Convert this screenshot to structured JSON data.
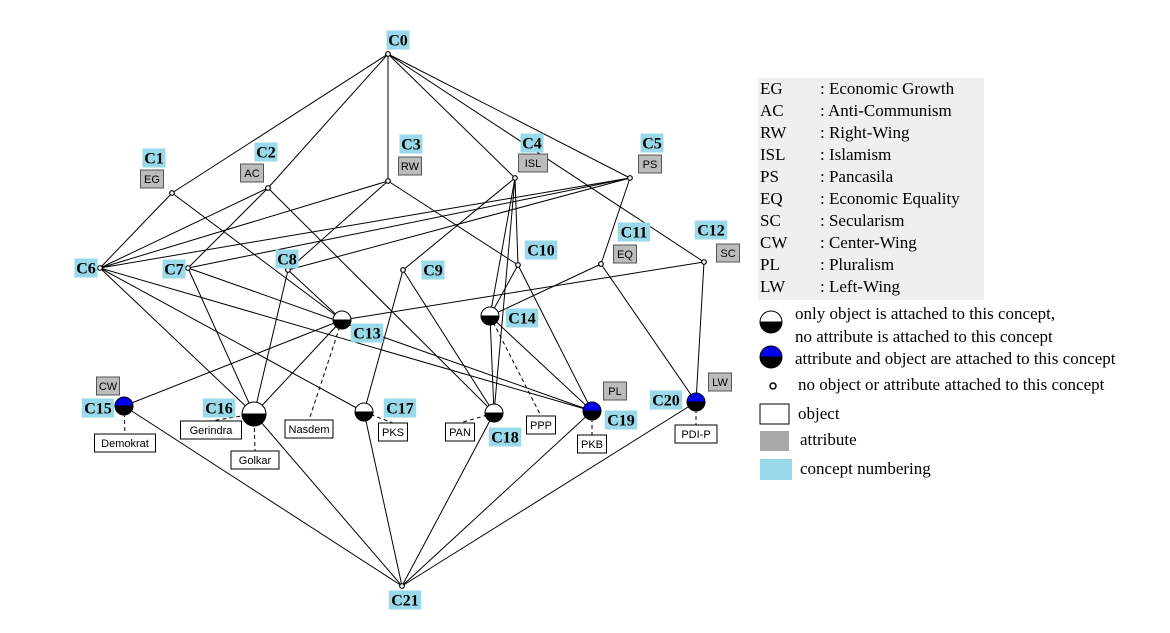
{
  "colors": {
    "concept_label_bg": "#99d9ea",
    "attribute_bg": "#bcbcbc",
    "object_bg": "#ffffff",
    "attr_obj_node": "#0000ee",
    "obj_node": "#000000",
    "legend_table_bg": "#efefef"
  },
  "concepts": [
    {
      "id": "C0"
    },
    {
      "id": "C1"
    },
    {
      "id": "C2"
    },
    {
      "id": "C3"
    },
    {
      "id": "C4"
    },
    {
      "id": "C5"
    },
    {
      "id": "C6"
    },
    {
      "id": "C7"
    },
    {
      "id": "C8"
    },
    {
      "id": "C9"
    },
    {
      "id": "C10"
    },
    {
      "id": "C11"
    },
    {
      "id": "C12"
    },
    {
      "id": "C13"
    },
    {
      "id": "C14"
    },
    {
      "id": "C15"
    },
    {
      "id": "C16"
    },
    {
      "id": "C17"
    },
    {
      "id": "C18"
    },
    {
      "id": "C19"
    },
    {
      "id": "C20"
    },
    {
      "id": "C21"
    }
  ],
  "attributes": [
    {
      "concept": "C1",
      "label": "EG"
    },
    {
      "concept": "C2",
      "label": "AC"
    },
    {
      "concept": "C3",
      "label": "RW"
    },
    {
      "concept": "C4",
      "label": "ISL"
    },
    {
      "concept": "C5",
      "label": "PS"
    },
    {
      "concept": "C11",
      "label": "EQ"
    },
    {
      "concept": "C12",
      "label": "SC"
    },
    {
      "concept": "C15",
      "label": "CW"
    },
    {
      "concept": "C19",
      "label": "PL"
    },
    {
      "concept": "C20",
      "label": "LW"
    }
  ],
  "objects": [
    {
      "concept": "C15",
      "label": "Demokrat"
    },
    {
      "concept": "C16",
      "label": "Gerindra"
    },
    {
      "concept": "C16",
      "label": "Golkar"
    },
    {
      "concept": "C13",
      "label": "Nasdem"
    },
    {
      "concept": "C17",
      "label": "PKS"
    },
    {
      "concept": "C18",
      "label": "PAN"
    },
    {
      "concept": "C14",
      "label": "PPP"
    },
    {
      "concept": "C19",
      "label": "PKB"
    },
    {
      "concept": "C20",
      "label": "PDI-P"
    }
  ],
  "edges": [
    [
      "C0",
      "C1"
    ],
    [
      "C0",
      "C2"
    ],
    [
      "C0",
      "C3"
    ],
    [
      "C0",
      "C4"
    ],
    [
      "C0",
      "C5"
    ],
    [
      "C0",
      "C12"
    ],
    [
      "C1",
      "C6"
    ],
    [
      "C1",
      "C13"
    ],
    [
      "C2",
      "C6"
    ],
    [
      "C2",
      "C7"
    ],
    [
      "C2",
      "C18"
    ],
    [
      "C3",
      "C6"
    ],
    [
      "C3",
      "C8"
    ],
    [
      "C3",
      "C10"
    ],
    [
      "C4",
      "C9"
    ],
    [
      "C4",
      "C10"
    ],
    [
      "C4",
      "C14"
    ],
    [
      "C4",
      "C18"
    ],
    [
      "C5",
      "C6"
    ],
    [
      "C5",
      "C7"
    ],
    [
      "C5",
      "C8"
    ],
    [
      "C5",
      "C11"
    ],
    [
      "C6",
      "C16"
    ],
    [
      "C6",
      "C17"
    ],
    [
      "C6",
      "C19"
    ],
    [
      "C7",
      "C16"
    ],
    [
      "C7",
      "C19"
    ],
    [
      "C8",
      "C13"
    ],
    [
      "C8",
      "C16"
    ],
    [
      "C9",
      "C17"
    ],
    [
      "C9",
      "C18"
    ],
    [
      "C10",
      "C14"
    ],
    [
      "C10",
      "C19"
    ],
    [
      "C11",
      "C14"
    ],
    [
      "C11",
      "C20"
    ],
    [
      "C12",
      "C13"
    ],
    [
      "C12",
      "C20"
    ],
    [
      "C13",
      "C15"
    ],
    [
      "C13",
      "C16"
    ],
    [
      "C14",
      "C18"
    ],
    [
      "C14",
      "C19"
    ],
    [
      "C15",
      "C21"
    ],
    [
      "C16",
      "C21"
    ],
    [
      "C17",
      "C21"
    ],
    [
      "C18",
      "C21"
    ],
    [
      "C19",
      "C21"
    ],
    [
      "C20",
      "C21"
    ]
  ],
  "legend": {
    "abbreviations": [
      {
        "abbr": "EG",
        "meaning": ": Economic Growth"
      },
      {
        "abbr": "AC",
        "meaning": ": Anti-Communism"
      },
      {
        "abbr": "RW",
        "meaning": ": Right-Wing"
      },
      {
        "abbr": "ISL",
        "meaning": ": Islamism"
      },
      {
        "abbr": "PS",
        "meaning": ": Pancasila"
      },
      {
        "abbr": "EQ",
        "meaning": ": Economic Equality"
      },
      {
        "abbr": "SC",
        "meaning": ": Secularism"
      },
      {
        "abbr": "CW",
        "meaning": ": Center-Wing"
      },
      {
        "abbr": "PL",
        "meaning": ": Pluralism"
      },
      {
        "abbr": "LW",
        "meaning": ": Left-Wing"
      }
    ],
    "obj_node_line1": "only object is attached to this concept,",
    "obj_node_line2": "no attribute is attached to this concept",
    "attr_obj_node": "attribute and object are attached to this concept",
    "empty_node": "no object or attribute attached to this concept",
    "object_box": "object",
    "attribute_box": "attribute",
    "concept_box": "concept numbering"
  }
}
